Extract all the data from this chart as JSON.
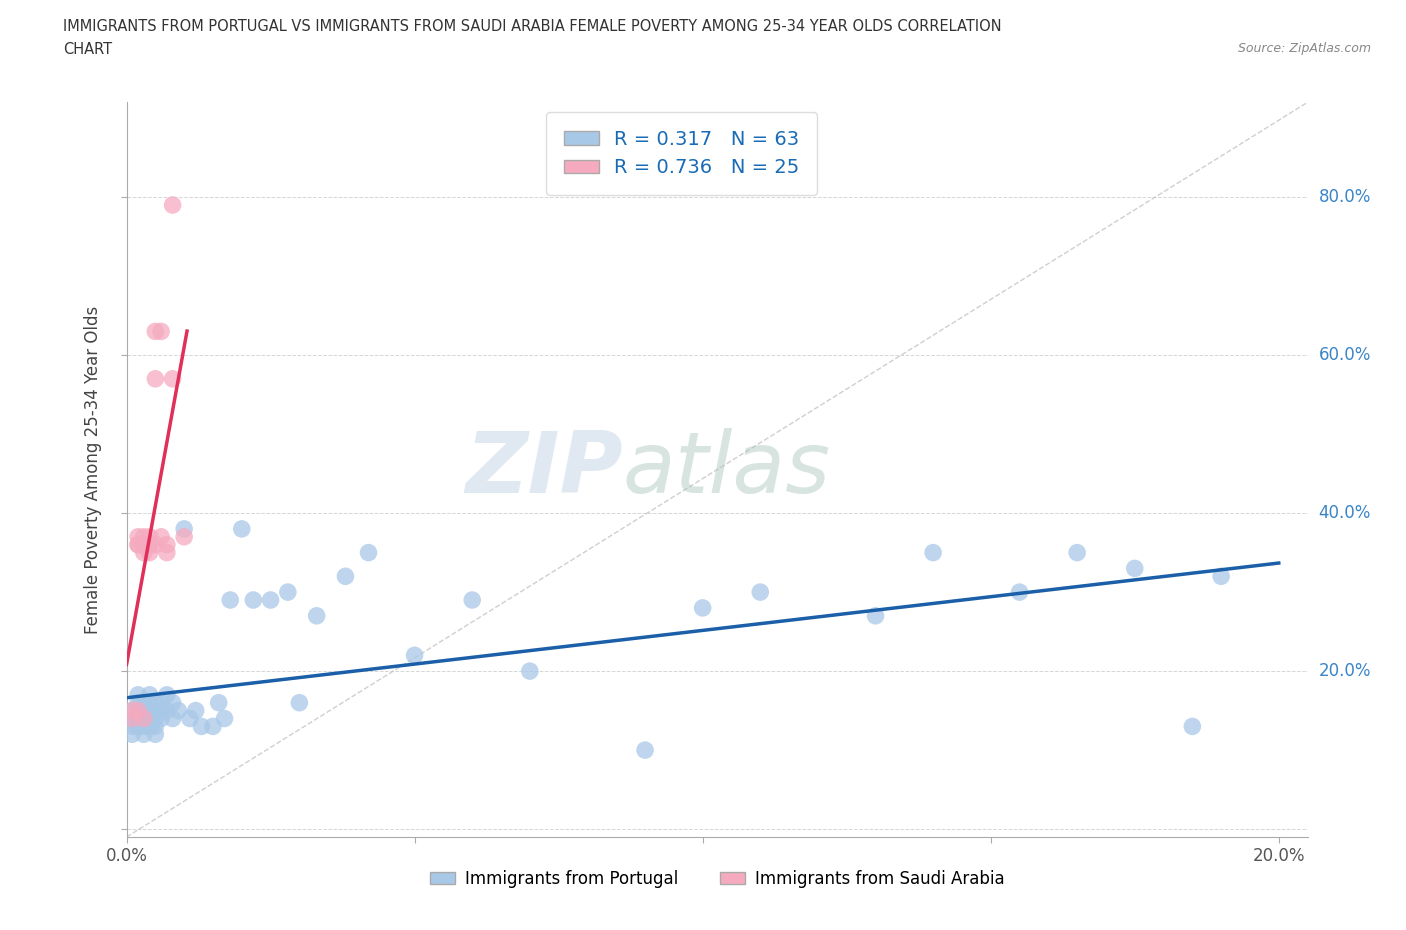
{
  "title_line1": "IMMIGRANTS FROM PORTUGAL VS IMMIGRANTS FROM SAUDI ARABIA FEMALE POVERTY AMONG 25-34 YEAR OLDS CORRELATION",
  "title_line2": "CHART",
  "source_text": "Source: ZipAtlas.com",
  "ylabel": "Female Poverty Among 25-34 Year Olds",
  "xlim": [
    0.0,
    0.205
  ],
  "ylim": [
    -0.01,
    0.92
  ],
  "x_ticks": [
    0.0,
    0.05,
    0.1,
    0.15,
    0.2
  ],
  "y_ticks": [
    0.0,
    0.2,
    0.4,
    0.6,
    0.8
  ],
  "portugal_color": "#a8c8e8",
  "saudi_color": "#f5aabf",
  "portugal_line_color": "#1a5fa8",
  "saudi_line_color": "#e0305a",
  "R_portugal": 0.317,
  "N_portugal": 63,
  "R_saudi": 0.736,
  "N_saudi": 25,
  "legend_label_portugal": "Immigrants from Portugal",
  "legend_label_saudi": "Immigrants from Saudi Arabia",
  "watermark_zip": "ZIP",
  "watermark_atlas": "atlas",
  "portugal_x": [
    0.001,
    0.001,
    0.001,
    0.001,
    0.002,
    0.002,
    0.002,
    0.002,
    0.002,
    0.003,
    0.003,
    0.003,
    0.003,
    0.003,
    0.003,
    0.003,
    0.004,
    0.004,
    0.004,
    0.004,
    0.004,
    0.005,
    0.005,
    0.005,
    0.005,
    0.005,
    0.006,
    0.006,
    0.006,
    0.007,
    0.007,
    0.008,
    0.008,
    0.009,
    0.01,
    0.011,
    0.012,
    0.013,
    0.015,
    0.016,
    0.017,
    0.018,
    0.02,
    0.022,
    0.025,
    0.028,
    0.03,
    0.033,
    0.038,
    0.042,
    0.05,
    0.06,
    0.07,
    0.09,
    0.1,
    0.11,
    0.13,
    0.14,
    0.155,
    0.165,
    0.175,
    0.185,
    0.19
  ],
  "portugal_y": [
    0.14,
    0.15,
    0.13,
    0.12,
    0.16,
    0.14,
    0.15,
    0.13,
    0.17,
    0.15,
    0.14,
    0.16,
    0.13,
    0.15,
    0.12,
    0.14,
    0.16,
    0.15,
    0.13,
    0.14,
    0.17,
    0.15,
    0.14,
    0.16,
    0.13,
    0.12,
    0.15,
    0.16,
    0.14,
    0.17,
    0.15,
    0.16,
    0.14,
    0.15,
    0.38,
    0.14,
    0.15,
    0.13,
    0.13,
    0.16,
    0.14,
    0.29,
    0.38,
    0.29,
    0.29,
    0.3,
    0.16,
    0.27,
    0.32,
    0.35,
    0.22,
    0.29,
    0.2,
    0.1,
    0.28,
    0.3,
    0.27,
    0.35,
    0.3,
    0.35,
    0.33,
    0.13,
    0.32
  ],
  "saudi_x": [
    0.001,
    0.001,
    0.002,
    0.002,
    0.002,
    0.002,
    0.003,
    0.003,
    0.003,
    0.003,
    0.003,
    0.004,
    0.004,
    0.004,
    0.004,
    0.005,
    0.005,
    0.005,
    0.006,
    0.006,
    0.007,
    0.007,
    0.008,
    0.008,
    0.01
  ],
  "saudi_y": [
    0.14,
    0.15,
    0.36,
    0.37,
    0.15,
    0.36,
    0.37,
    0.36,
    0.36,
    0.35,
    0.14,
    0.36,
    0.35,
    0.37,
    0.36,
    0.63,
    0.57,
    0.36,
    0.37,
    0.63,
    0.36,
    0.35,
    0.79,
    0.57,
    0.37
  ]
}
